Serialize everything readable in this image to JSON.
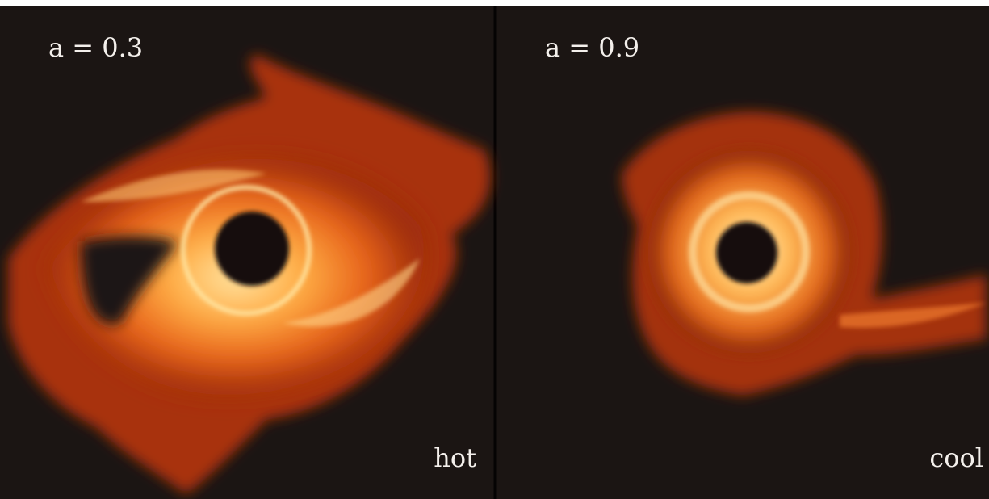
{
  "panels": [
    {
      "label": "a = 0.3",
      "note": "hot"
    },
    {
      "label": "a = 0.9",
      "note": "cool"
    }
  ]
}
